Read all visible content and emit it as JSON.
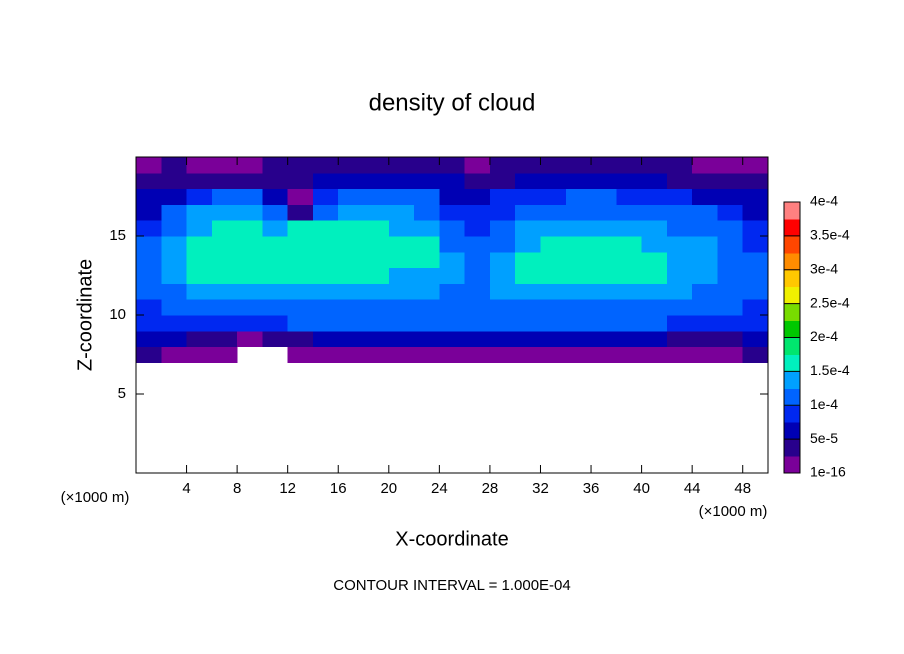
{
  "chart_data": {
    "type": "heatmap",
    "title": "density of cloud",
    "x_label": "X-coordinate",
    "y_label": "Z-coordinate",
    "x_unit_label": "(×1000 m)",
    "y_unit_label": "(×1000 m)",
    "footer": "CONTOUR INTERVAL = 1.000E-04",
    "xlim": [
      0,
      50
    ],
    "ylim": [
      0,
      20
    ],
    "xticks": [
      4,
      8,
      12,
      16,
      20,
      24,
      28,
      32,
      36,
      40,
      44,
      48
    ],
    "yticks": [
      5,
      10,
      15
    ],
    "x": [
      1,
      3,
      5,
      7,
      9,
      11,
      13,
      15,
      17,
      19,
      21,
      23,
      25,
      27,
      29,
      31,
      33,
      35,
      37,
      39,
      41,
      43,
      45,
      47,
      49
    ],
    "y": [
      7.5,
      8.5,
      9.5,
      10.5,
      11.5,
      12.5,
      13.5,
      14.5,
      15.5,
      16.5,
      17.5,
      18.5,
      19.5
    ],
    "z": [
      [
        3e-05,
        2e-05,
        1e-05,
        1e-05,
        null,
        null,
        1e-05,
        1e-05,
        1e-05,
        1e-05,
        1e-05,
        1e-05,
        1e-05,
        1e-05,
        1e-05,
        1e-05,
        1e-05,
        1e-05,
        1e-05,
        1e-05,
        1e-05,
        1e-05,
        2e-05,
        2e-05,
        3e-05
      ],
      [
        5e-05,
        5e-05,
        4e-05,
        3e-05,
        2e-05,
        3e-05,
        4e-05,
        5e-05,
        5e-05,
        5e-05,
        5e-05,
        5e-05,
        5e-05,
        5e-05,
        5e-05,
        5e-05,
        5e-05,
        5e-05,
        5e-05,
        5e-05,
        5e-05,
        4e-05,
        3e-05,
        4e-05,
        5e-05
      ],
      [
        9e-05,
        9e-05,
        9e-05,
        8e-05,
        9e-05,
        9e-05,
        0.0001,
        0.0001,
        0.0001,
        0.0001,
        0.0001,
        0.0001,
        0.0001,
        0.0001,
        0.0001,
        0.0001,
        0.0001,
        0.0001,
        0.0001,
        0.0001,
        0.0001,
        9e-05,
        9e-05,
        9e-05,
        9e-05
      ],
      [
        9e-05,
        0.0001,
        0.00011,
        0.00012,
        0.00012,
        0.00012,
        0.00012,
        0.00012,
        0.00012,
        0.00012,
        0.00012,
        0.00012,
        0.00012,
        0.00011,
        0.00012,
        0.00012,
        0.00012,
        0.00012,
        0.00012,
        0.00012,
        0.00012,
        0.00011,
        0.00011,
        0.0001,
        9e-05
      ],
      [
        0.0001,
        0.00011,
        0.00013,
        0.00014,
        0.00014,
        0.00014,
        0.00014,
        0.00014,
        0.00014,
        0.00014,
        0.00013,
        0.00013,
        0.00012,
        0.00011,
        0.00013,
        0.00014,
        0.00014,
        0.00014,
        0.00014,
        0.00014,
        0.00014,
        0.00013,
        0.00012,
        0.00011,
        0.0001
      ],
      [
        0.00011,
        0.00013,
        0.00015,
        0.00015,
        0.00015,
        0.00015,
        0.00015,
        0.00015,
        0.00015,
        0.00015,
        0.00014,
        0.00014,
        0.00013,
        0.00011,
        0.00014,
        0.00015,
        0.00015,
        0.00015,
        0.00015,
        0.00015,
        0.00015,
        0.00014,
        0.00013,
        0.00012,
        0.0001
      ],
      [
        0.00011,
        0.00014,
        0.00016,
        0.00016,
        0.00016,
        0.00016,
        0.00016,
        0.00016,
        0.00016,
        0.00016,
        0.00015,
        0.00015,
        0.00013,
        0.00011,
        0.00013,
        0.00015,
        0.00015,
        0.00016,
        0.00016,
        0.00015,
        0.00015,
        0.00014,
        0.00013,
        0.00012,
        0.0001
      ],
      [
        0.0001,
        0.00013,
        0.00015,
        0.00016,
        0.00016,
        0.00016,
        0.00016,
        0.00016,
        0.00016,
        0.00016,
        0.00015,
        0.00015,
        0.00012,
        0.0001,
        0.00012,
        0.00014,
        0.00015,
        0.00015,
        0.00015,
        0.00015,
        0.00014,
        0.00014,
        0.00013,
        0.00011,
        9e-05
      ],
      [
        9e-05,
        0.00012,
        0.00014,
        0.00015,
        0.00015,
        0.00014,
        0.00015,
        0.00015,
        0.00015,
        0.00015,
        0.00014,
        0.00014,
        0.00011,
        8e-05,
        0.0001,
        0.00013,
        0.00014,
        0.00014,
        0.00014,
        0.00014,
        0.00013,
        0.00012,
        0.00011,
        0.0001,
        8e-05
      ],
      [
        7e-05,
        0.0001,
        0.00013,
        0.00013,
        0.00013,
        0.0001,
        4e-05,
        0.00012,
        0.00013,
        0.00013,
        0.00013,
        0.00012,
        9e-05,
        9e-05,
        9e-05,
        0.00011,
        0.00012,
        0.00012,
        0.00012,
        0.00012,
        0.00011,
        0.0001,
        0.0001,
        8e-05,
        6e-05
      ],
      [
        5e-05,
        7e-05,
        9e-05,
        0.0001,
        0.0001,
        6e-05,
        1e-05,
        8e-05,
        0.0001,
        0.0001,
        0.0001,
        0.0001,
        7e-05,
        6e-05,
        8e-05,
        9e-05,
        9e-05,
        0.0001,
        0.0001,
        9e-05,
        9e-05,
        8e-05,
        7e-05,
        6e-05,
        5e-05
      ],
      [
        3e-05,
        4e-05,
        4e-05,
        3e-05,
        4e-05,
        4e-05,
        3e-05,
        5e-05,
        6e-05,
        6e-05,
        6e-05,
        7e-05,
        5e-05,
        3e-05,
        4e-05,
        5e-05,
        5e-05,
        5e-05,
        5e-05,
        5e-05,
        5e-05,
        4e-05,
        4e-05,
        3e-05,
        3e-05
      ],
      [
        2e-05,
        3e-05,
        1e-05,
        5e-06,
        1e-05,
        3e-05,
        4e-05,
        4e-05,
        4e-05,
        4e-05,
        4e-05,
        4e-05,
        3e-05,
        2e-05,
        3e-05,
        3e-05,
        3e-05,
        3e-05,
        3e-05,
        3e-05,
        3e-05,
        3e-05,
        2e-05,
        2e-05,
        2e-05
      ]
    ],
    "clim": [
      0,
      0.0004
    ],
    "cticks": [
      {
        "value": 1e-16,
        "label": "1e-16"
      },
      {
        "value": 5e-05,
        "label": "5e-5"
      },
      {
        "value": 0.0001,
        "label": "1e-4"
      },
      {
        "value": 0.00015,
        "label": "1.5e-4"
      },
      {
        "value": 0.0002,
        "label": "2e-4"
      },
      {
        "value": 0.00025,
        "label": "2.5e-4"
      },
      {
        "value": 0.0003,
        "label": "3e-4"
      },
      {
        "value": 0.00035,
        "label": "3.5e-4"
      },
      {
        "value": 0.0004,
        "label": "4e-4"
      }
    ],
    "colors": [
      "#7a0099",
      "#28008c",
      "#0000b4",
      "#0028f0",
      "#0064ff",
      "#00a0ff",
      "#00f0be",
      "#00e66e",
      "#00c800",
      "#78dc00",
      "#f0f000",
      "#ffc800",
      "#ff8c00",
      "#ff4600",
      "#ff0000",
      "#ff8080"
    ]
  }
}
